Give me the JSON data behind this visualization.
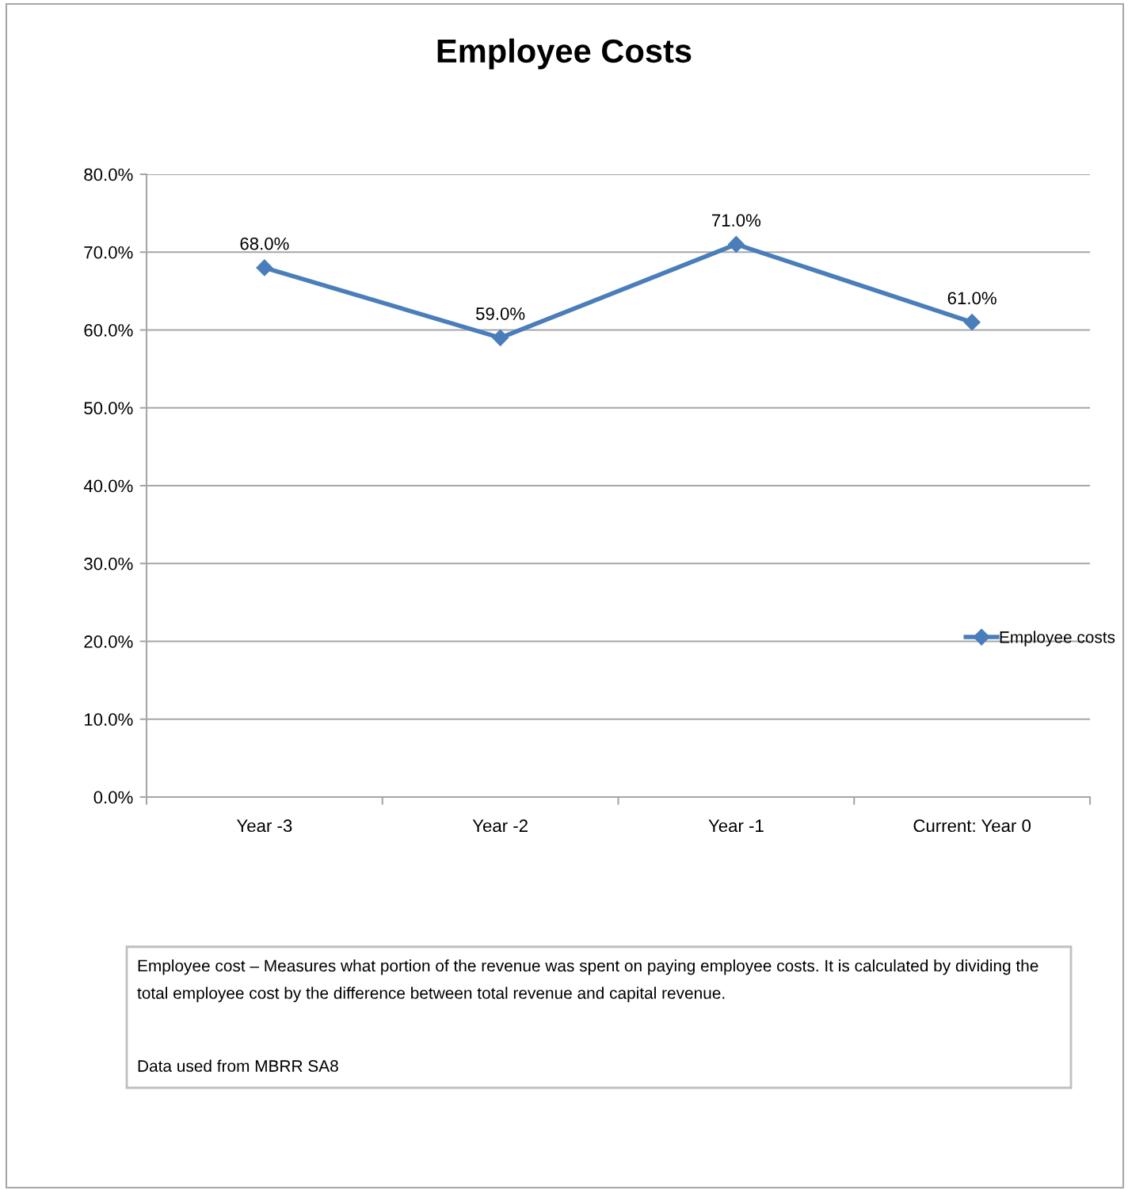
{
  "chart_data": {
    "type": "line",
    "title": "Employee Costs",
    "categories": [
      "Year -3",
      "Year -2",
      "Year -1",
      "Current: Year 0"
    ],
    "series": [
      {
        "name": "Employee costs",
        "color": "#4a7ebb",
        "values": [
          68.0,
          59.0,
          71.0,
          61.0
        ],
        "value_labels": [
          "68.0%",
          "59.0%",
          "71.0%",
          "61.0%"
        ]
      }
    ],
    "ylim": [
      0,
      80
    ],
    "yticks": [
      {
        "value": 0,
        "label": "0.0%"
      },
      {
        "value": 10,
        "label": "10.0%"
      },
      {
        "value": 20,
        "label": "20.0%"
      },
      {
        "value": 30,
        "label": "30.0%"
      },
      {
        "value": 40,
        "label": "40.0%"
      },
      {
        "value": 50,
        "label": "50.0%"
      },
      {
        "value": 60,
        "label": "60.0%"
      },
      {
        "value": 70,
        "label": "70.0%"
      },
      {
        "value": 80,
        "label": "80.0%"
      }
    ],
    "grid": "y",
    "legend": "right",
    "marker": "diamond",
    "line_style": "solid",
    "annotations": [
      "Employee cost – Measures what portion of the revenue was spent on paying employee costs. It is calculated by dividing the total employee cost by the difference between total revenue and capital revenue.",
      "Data used from MBRR SA8"
    ]
  }
}
